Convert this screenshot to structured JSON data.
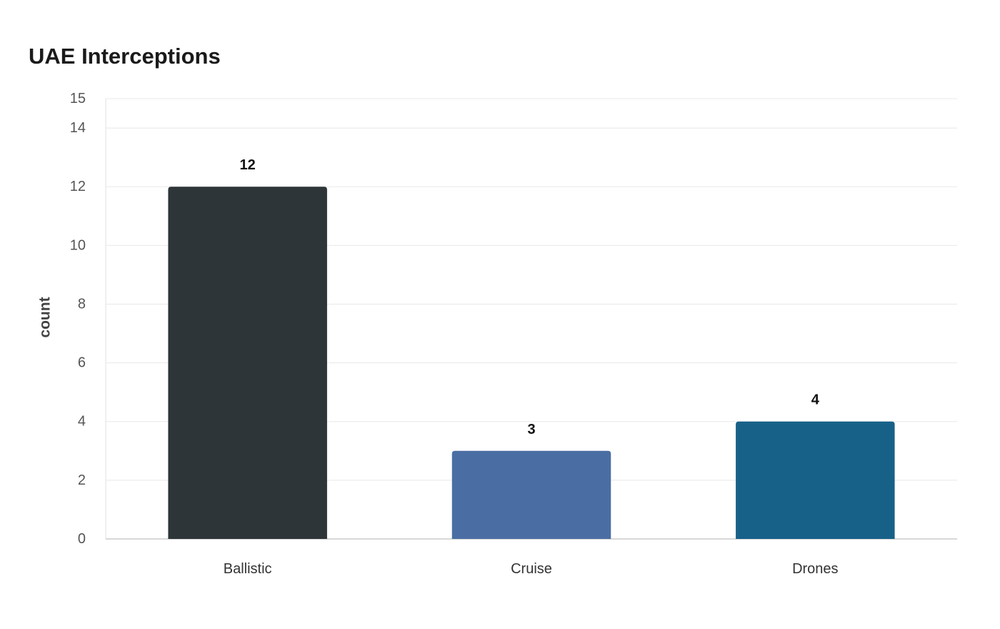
{
  "chart_data": {
    "type": "bar",
    "title": "UAE Interceptions",
    "xlabel": "",
    "ylabel": "count",
    "categories": [
      "Ballistic",
      "Cruise",
      "Drones"
    ],
    "values": [
      12,
      3,
      4
    ],
    "colors": [
      "#2e3538",
      "#4a6ea3",
      "#176189"
    ],
    "ylim": [
      0,
      15
    ],
    "yticks": [
      0,
      2,
      4,
      6,
      8,
      10,
      12,
      14,
      15
    ],
    "data_labels": [
      "12",
      "3",
      "4"
    ],
    "grid": true,
    "legend": "none"
  }
}
